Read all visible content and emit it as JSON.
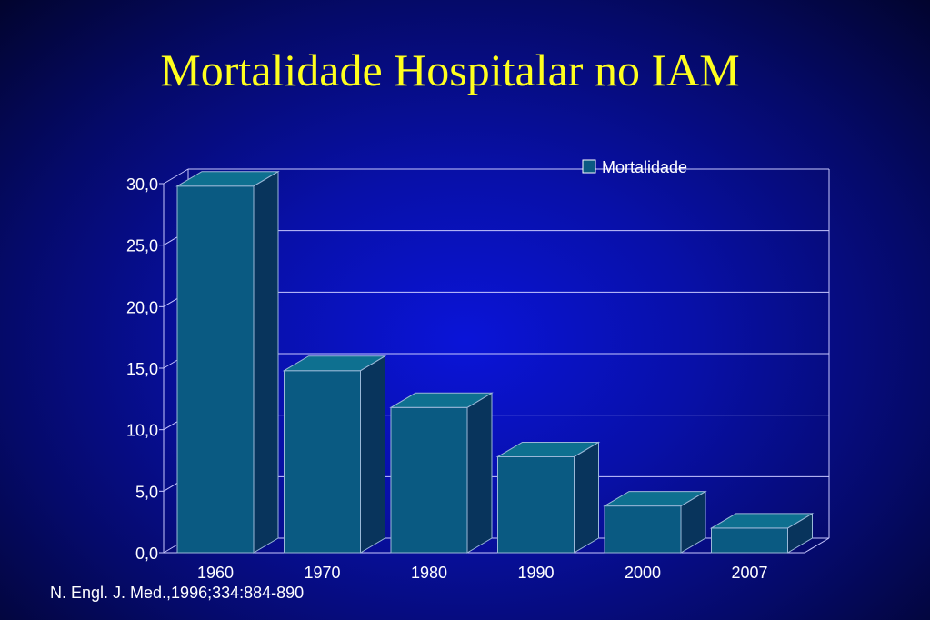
{
  "title": "Mortalidade Hospitalar no  IAM",
  "source": "N. Engl. J. Med.,1996;334:884-890",
  "colors": {
    "title": "#ffff1e",
    "bar_front": "#0a5a82",
    "bar_side": "#08345c",
    "bar_top": "#0e7090",
    "grid": "#c8c8ff"
  },
  "chart_data": {
    "type": "bar",
    "categories": [
      "1960",
      "1970",
      "1980",
      "1990",
      "2000",
      "2007"
    ],
    "series": [
      {
        "name": "Mortalidade",
        "values": [
          29.8,
          14.8,
          11.8,
          7.8,
          3.8,
          2.0
        ]
      }
    ],
    "ylim": [
      0,
      30
    ],
    "yticks": [
      "0,0",
      "5,0",
      "10,0",
      "15,0",
      "20,0",
      "25,0",
      "30,0"
    ],
    "grid": true,
    "legend": "top-right",
    "style": "3d-column"
  }
}
